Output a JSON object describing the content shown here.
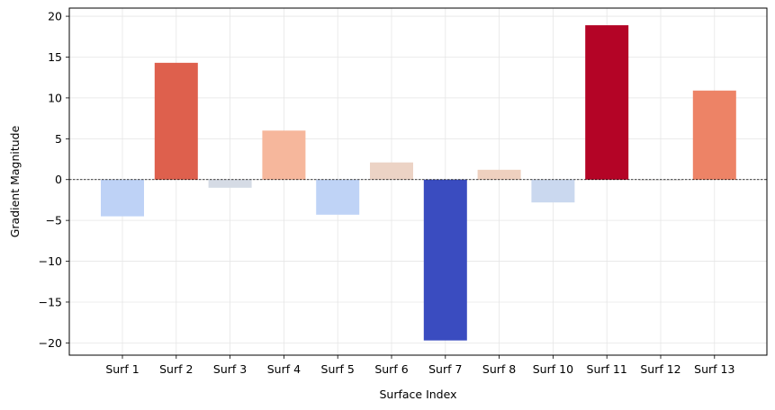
{
  "chart_data": {
    "type": "bar",
    "title": "",
    "xlabel": "Surface Index",
    "ylabel": "Gradient Magnitude",
    "categories": [
      "Surf 1",
      "Surf 2",
      "Surf 3",
      "Surf 4",
      "Surf 5",
      "Surf 6",
      "Surf 7",
      "Surf 8",
      "Surf 10",
      "Surf 11",
      "Surf 12",
      "Surf 13"
    ],
    "values": [
      -4.5,
      14.3,
      -1.0,
      6.0,
      -4.3,
      2.1,
      -19.7,
      1.2,
      -2.8,
      18.9,
      -0.1,
      10.9
    ],
    "colors": [
      "#bed2f6",
      "#de604d",
      "#d5dbe5",
      "#f6b79c",
      "#bfd3f6",
      "#ecd3c5",
      "#3a4cc0",
      "#eed0bf",
      "#cad8ef",
      "#b40426",
      "#dddcdc",
      "#ed8366"
    ],
    "ylim": [
      -21.5,
      21
    ],
    "yticks": [
      -20,
      -15,
      -10,
      -5,
      0,
      5,
      10,
      15,
      20
    ],
    "ytick_labels": [
      "−20",
      "−15",
      "−10",
      "−5",
      "0",
      "5",
      "10",
      "15",
      "20"
    ],
    "grid": true,
    "zero_line": true,
    "legend": "none"
  }
}
